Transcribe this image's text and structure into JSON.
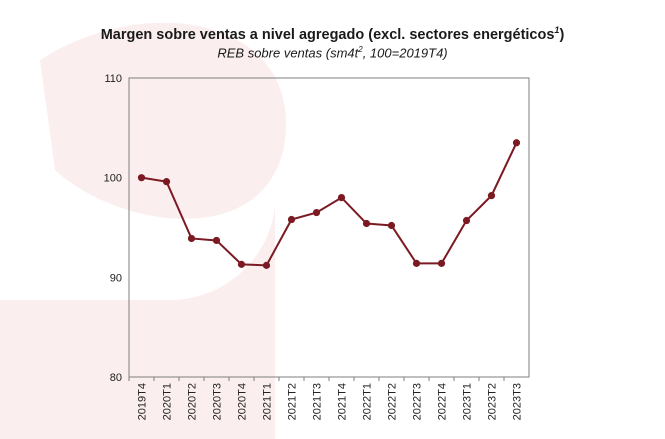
{
  "header": {
    "title_main": "Margen sobre ventas a nivel agregado (excl. sectores energéticos",
    "title_sup": "1",
    "title_close": ")",
    "subtitle_pre": "REB sobre ventas (sm4t",
    "subtitle_sup": "2",
    "subtitle_post": ", 100=2019T4)"
  },
  "colors": {
    "series": "#7b1a22",
    "frame": "#7f7f7f",
    "watermark": "#fbeeee"
  },
  "chart_data": {
    "type": "line",
    "title": "Margen sobre ventas a nivel agregado (excl. sectores energéticos1)",
    "subtitle": "REB sobre ventas (sm4t2, 100=2019T4)",
    "xlabel": "",
    "ylabel": "",
    "ylim": [
      80,
      110
    ],
    "yticks": [
      80,
      90,
      100,
      110
    ],
    "grid": false,
    "legend": "none",
    "categories": [
      "2019T4",
      "2020T1",
      "2020T2",
      "2020T3",
      "2020T4",
      "2021T1",
      "2021T2",
      "2021T3",
      "2021T4",
      "2022T1",
      "2022T2",
      "2022T3",
      "2022T4",
      "2023T1",
      "2023T2",
      "2023T3"
    ],
    "series": [
      {
        "values": [
          100.0,
          99.6,
          93.9,
          93.7,
          91.3,
          91.2,
          95.8,
          96.5,
          98.0,
          95.4,
          95.2,
          91.4,
          91.4,
          95.7,
          98.2,
          103.5
        ]
      }
    ]
  }
}
